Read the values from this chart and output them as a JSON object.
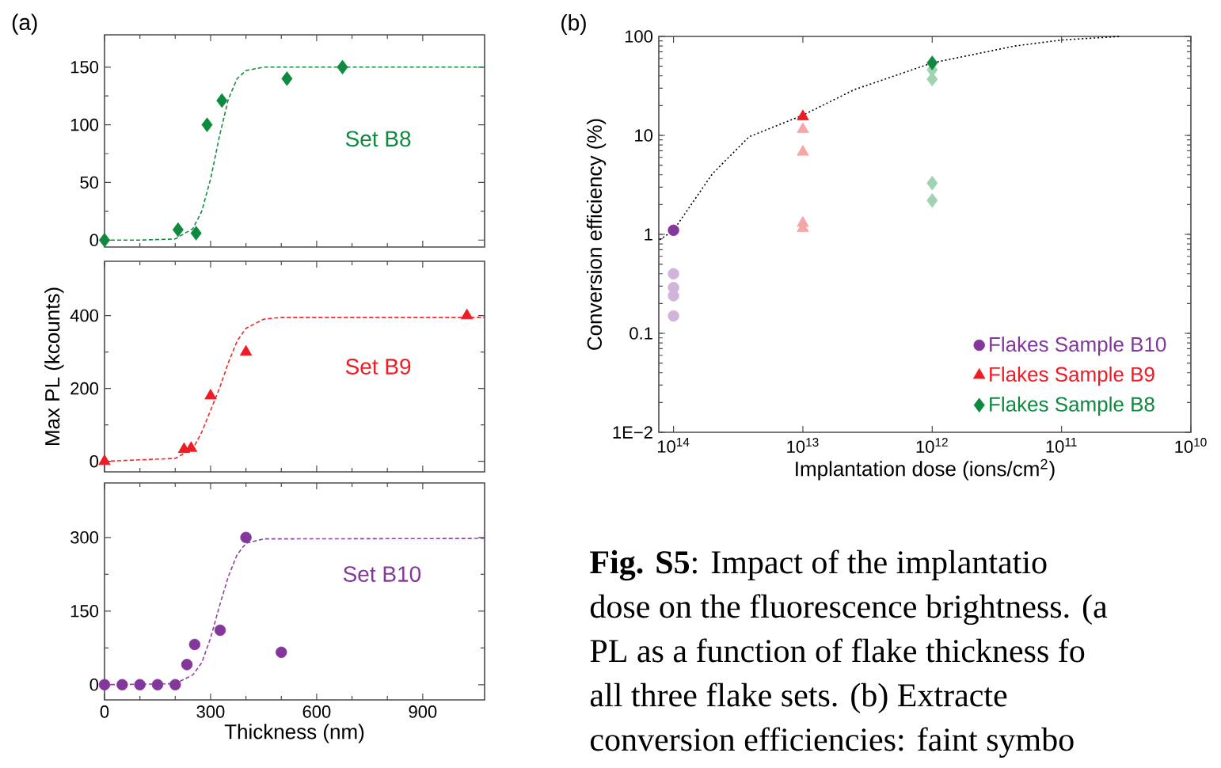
{
  "chart_data": [
    {
      "type": "scatter",
      "xlim": [
        0,
        1075
      ],
      "ylim": [
        -6,
        178
      ],
      "xticks": [
        0,
        300,
        600,
        900
      ],
      "yticks": [
        0,
        50,
        100,
        150
      ],
      "tick_labels": "y",
      "annotations": [
        "(a)"
      ],
      "series": [
        {
          "type": "line",
          "line_style": "dashed",
          "color": "#1a8a45",
          "x": [
            0,
            100,
            200,
            250,
            275,
            300,
            325,
            350,
            375,
            400,
            450,
            1075
          ],
          "values": [
            0,
            0,
            1,
            10,
            25,
            53,
            90,
            122,
            140,
            147,
            150,
            150
          ]
        },
        {
          "name": "Set B8",
          "marker": "diamond",
          "color": "#0e8a3f",
          "x": [
            0,
            208,
            259,
            290,
            332,
            516,
            673
          ],
          "values": [
            0,
            9,
            6,
            100,
            121,
            140,
            150
          ]
        }
      ]
    },
    {
      "type": "scatter",
      "xlim": [
        0,
        1075
      ],
      "ylim": [
        -29,
        549
      ],
      "xticks": [
        0,
        300,
        600,
        900
      ],
      "yticks": [
        0,
        200,
        400
      ],
      "tick_labels": "y",
      "ylabel": "Max PL (kcounts)",
      "series": [
        {
          "type": "line",
          "line_style": "dashed",
          "color": "#ee2a2a",
          "x": [
            0,
            200,
            250,
            275,
            300,
            325,
            350,
            375,
            400,
            450,
            500,
            1075
          ],
          "values": [
            0,
            8,
            35,
            80,
            140,
            200,
            270,
            330,
            365,
            390,
            395,
            395
          ]
        },
        {
          "name": "Set B9",
          "marker": "triangle",
          "color": "#ee1c25",
          "x": [
            0,
            225,
            245,
            300,
            400,
            1025
          ],
          "values": [
            0,
            33,
            36,
            180,
            300,
            400
          ]
        }
      ]
    },
    {
      "type": "scatter",
      "xlim": [
        0,
        1075
      ],
      "ylim": [
        -31,
        411
      ],
      "xticks": [
        0,
        300,
        600,
        900
      ],
      "yticks": [
        0,
        150,
        300
      ],
      "xlabel": "Thickness (nm)",
      "series": [
        {
          "type": "line",
          "line_style": "dashed",
          "color": "#8e44a0",
          "x": [
            0,
            200,
            250,
            275,
            300,
            325,
            350,
            375,
            400,
            450,
            1075
          ],
          "values": [
            0,
            2,
            20,
            45,
            95,
            160,
            220,
            265,
            288,
            297,
            298
          ]
        },
        {
          "name": "Set B10",
          "marker": "circle",
          "color": "#84379a",
          "x": [
            0,
            50,
            100,
            150,
            200,
            233,
            255,
            327,
            400,
            500
          ],
          "values": [
            0,
            0,
            0,
            0,
            0,
            41,
            82,
            111,
            300,
            66
          ]
        }
      ]
    },
    {
      "type": "scatter",
      "log": "xy",
      "xlim": [
        130000000000000.0,
        10000000000.0
      ],
      "ylim": [
        0.01,
        100
      ],
      "xlabel": "Implantation dose (ions/cm$^{2}$)",
      "ylabel": "Conversion efficiency (%)",
      "legend": "bottom right",
      "annotations": [
        "(b)"
      ],
      "xticks": [
        {
          "value": 100000000000000.0,
          "label": "10$^{14}$"
        },
        {
          "value": 10000000000000.0,
          "label": "10$^{13}$"
        },
        {
          "value": 1000000000000.0,
          "label": "10$^{12}$"
        },
        {
          "value": 100000000000.0,
          "label": "10$^{11}$"
        },
        {
          "value": 10000000000.0,
          "label": "10$^{10}$"
        }
      ],
      "yticks": [
        {
          "value": 0.01,
          "label": "1E−2"
        },
        0.1,
        1,
        10,
        100
      ],
      "series": [
        {
          "type": "line",
          "line_style": "dotted",
          "color": "#000000",
          "x": [
            128000000000000.0,
            100000000000000.0,
            50000000000000.0,
            26000000000000.0,
            10000000000000.0,
            4000000000000.0,
            1000000000000.0,
            230000000000.0,
            100000000000.0,
            35000000000.0
          ],
          "values": [
            0.88,
            1.1,
            4.1,
            9.7,
            16,
            29,
            54,
            80,
            92,
            100
          ]
        },
        {
          "marker": "circle",
          "color": "#d2b4da",
          "x": [
            100000000000000.0,
            100000000000000.0,
            100000000000000.0,
            100000000000000.0
          ],
          "values": [
            0.4,
            0.29,
            0.24,
            0.15
          ]
        },
        {
          "name": "Flakes Sample B10",
          "marker": "circle",
          "color": "#84379a",
          "x": [
            100000000000000.0
          ],
          "values": [
            1.1
          ]
        },
        {
          "marker": "triangle",
          "color": "#f6a6a8",
          "x": [
            10000000000000.0,
            10000000000000.0,
            10000000000000.0,
            10000000000000.0
          ],
          "values": [
            11.5,
            6.8,
            1.3,
            1.15
          ]
        },
        {
          "name": "Flakes Sample B9",
          "marker": "triangle",
          "color": "#ee1c25",
          "x": [
            10000000000000.0
          ],
          "values": [
            15.5
          ]
        },
        {
          "marker": "diamond",
          "color": "#9fd3b2",
          "x": [
            1000000000000.0,
            1000000000000.0,
            1000000000000.0,
            1000000000000.0
          ],
          "values": [
            46,
            37,
            3.3,
            2.2
          ]
        },
        {
          "name": "Flakes Sample B8",
          "marker": "diamond",
          "color": "#0e8a3f",
          "x": [
            1000000000000.0
          ],
          "values": [
            54
          ]
        }
      ]
    },
    {
      "type": "other",
      "annotations": [
        "**Fig. S5**: Impact of the implantatio",
        "dose on the fluorescence brightness. (a",
        "PL as a function of flake thickness fo",
        "all three flake sets.  (b) Extracte",
        "conversion efficiencies: faint symbo"
      ]
    }
  ]
}
